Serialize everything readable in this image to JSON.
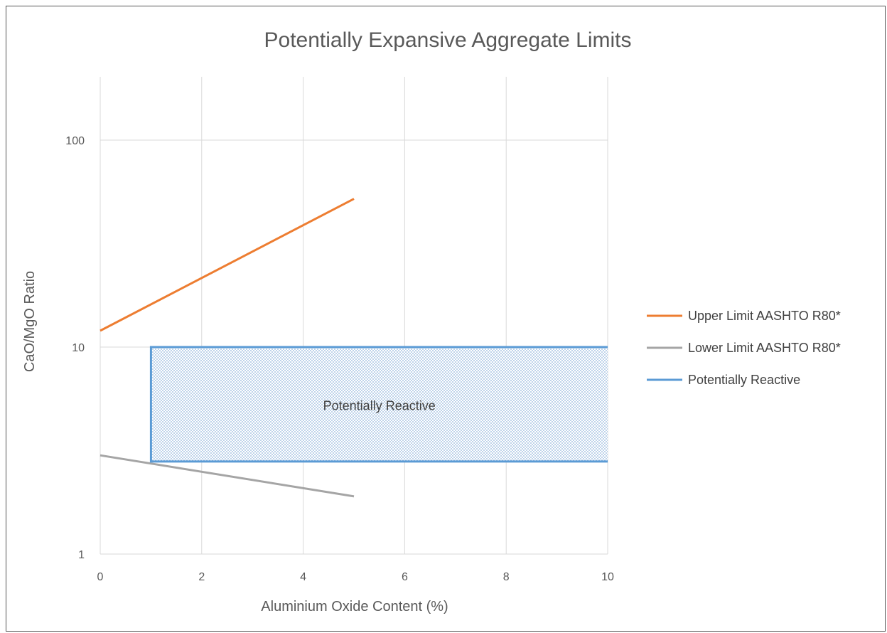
{
  "chart_data": {
    "type": "line",
    "title": "Potentially Expansive Aggregate Limits",
    "xlabel": "Aluminium Oxide Content (%)",
    "ylabel": "CaO/MgO Ratio",
    "xlim": [
      0,
      10
    ],
    "ylim": [
      1,
      200
    ],
    "yscale": "log",
    "grid": true,
    "legend_position": "right",
    "x_ticks": [
      "0",
      "2",
      "4",
      "6",
      "8",
      "10"
    ],
    "x_tick_values": [
      0,
      2,
      4,
      6,
      8,
      10
    ],
    "y_ticks": [
      "1",
      "10",
      "100"
    ],
    "y_tick_values": [
      1,
      10,
      100
    ],
    "series": [
      {
        "name": "Upper Limit AASHTO R80*",
        "color": "#ED7D31",
        "x": [
          0,
          5
        ],
        "y": [
          12,
          52
        ]
      },
      {
        "name": "Lower Limit AASHTO R80*",
        "color": "#A5A5A5",
        "x": [
          0,
          5
        ],
        "y": [
          3,
          1.9
        ]
      },
      {
        "name": "Potentially Reactive",
        "color": "#5B9BD5",
        "x": [
          10,
          1,
          1,
          10
        ],
        "y": [
          10,
          10,
          2.8,
          2.8
        ]
      }
    ],
    "annotations": [
      {
        "text": "Potentially Reactive",
        "x": 5.5,
        "y": 5.2
      }
    ],
    "shaded_region": {
      "x": [
        1,
        10
      ],
      "y": [
        2.8,
        10
      ],
      "color": "#5B9BD5"
    }
  }
}
